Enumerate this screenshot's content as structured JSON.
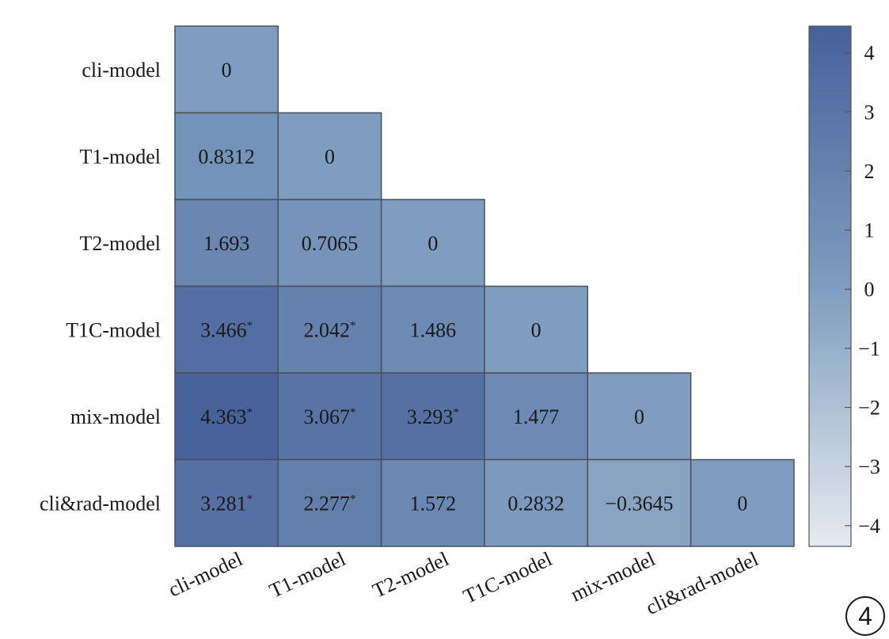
{
  "chart_data": {
    "type": "heatmap",
    "title": "",
    "rows": [
      "cli-model",
      "T1-model",
      "T2-model",
      "T1C-model",
      "mix-model",
      "cli&rad-model"
    ],
    "columns": [
      "cli-model",
      "T1-model",
      "T2-model",
      "T1C-model",
      "mix-model",
      "cli&rad-model"
    ],
    "values": [
      [
        "0"
      ],
      [
        "0.8312",
        "0"
      ],
      [
        "1.693",
        "0.7065",
        "0"
      ],
      [
        "3.466",
        "2.042",
        "1.486",
        "0"
      ],
      [
        "4.363",
        "3.067",
        "3.293",
        "1.477",
        "0"
      ],
      [
        "3.281",
        "2.277",
        "1.572",
        "0.2832",
        "−0.3645",
        "0"
      ]
    ],
    "significant": [
      [
        false
      ],
      [
        false,
        false
      ],
      [
        false,
        false,
        false
      ],
      [
        true,
        true,
        false,
        false
      ],
      [
        true,
        true,
        true,
        false,
        false
      ],
      [
        true,
        true,
        false,
        false,
        false,
        false
      ]
    ],
    "significance_mark": "*",
    "layout": "lower-triangular",
    "colorbar": {
      "range": [
        -4.35,
        4.45
      ],
      "ticks": [
        4,
        3,
        2,
        1,
        0,
        -1,
        -2,
        -3,
        -4
      ],
      "tick_labels": [
        "4",
        "3",
        "2",
        "1",
        "0",
        "−1",
        "−2",
        "−3",
        "−4"
      ],
      "colors": {
        "low": "#e6eaf0",
        "mid": "#7f9ebf",
        "high": "#46619a"
      }
    },
    "panel_label": "4"
  }
}
